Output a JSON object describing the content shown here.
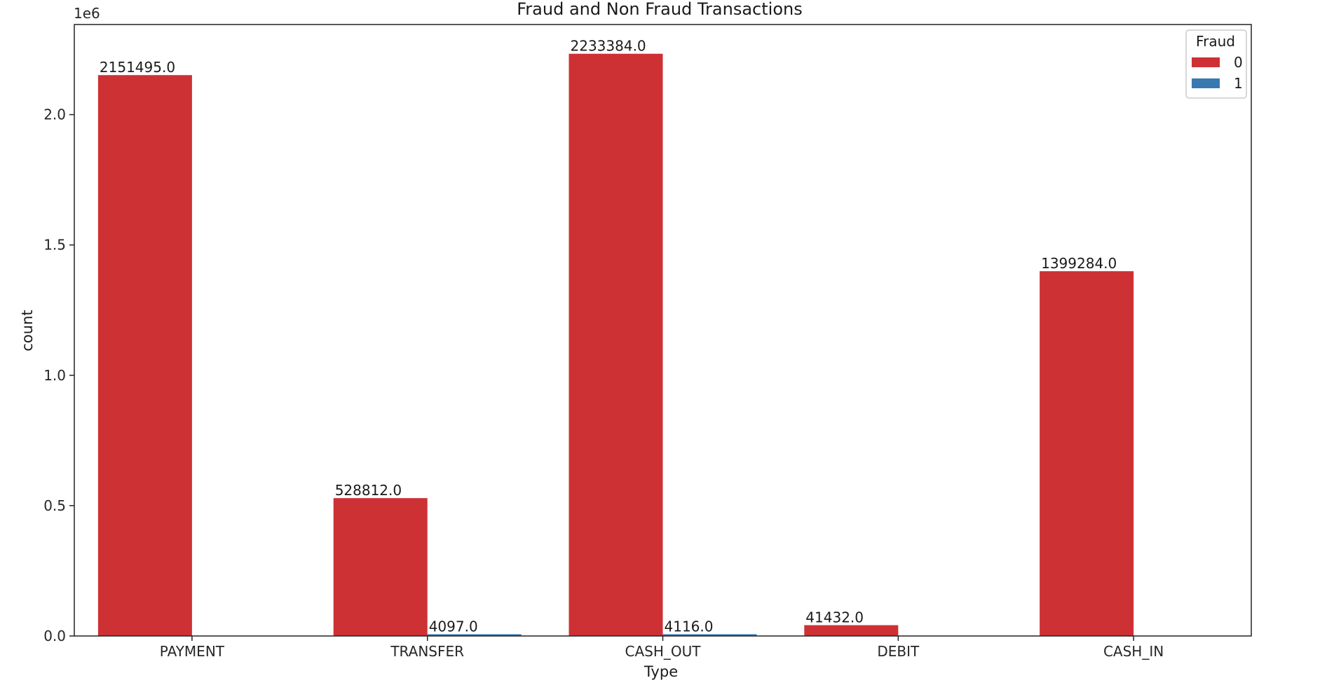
{
  "chart_data": {
    "type": "bar",
    "title": "Fraud and Non Fraud Transactions",
    "xlabel": "Type",
    "ylabel": "count",
    "y_offset_label": "1e6",
    "ylim": [
      0,
      2345553
    ],
    "yticks": [
      0,
      500000,
      1000000,
      1500000,
      2000000
    ],
    "ytick_labels": [
      "0.0",
      "0.5",
      "1.0",
      "1.5",
      "2.0"
    ],
    "categories": [
      "PAYMENT",
      "TRANSFER",
      "CASH_OUT",
      "DEBIT",
      "CASH_IN"
    ],
    "series": [
      {
        "name": "0",
        "color": "#cd3134",
        "values": [
          2151495,
          528812,
          2233384,
          41432,
          1399284
        ],
        "labels": [
          "2151495.0",
          "528812.0",
          "2233384.0",
          "41432.0",
          "1399284.0"
        ]
      },
      {
        "name": "1",
        "color": "#3a78b0",
        "values": [
          0,
          4097,
          4116,
          0,
          0
        ],
        "labels": [
          "",
          "4097.0",
          "4116.0",
          "",
          ""
        ]
      }
    ],
    "grid": false,
    "legend": {
      "title": "Fraud",
      "placement": "top-right"
    }
  }
}
